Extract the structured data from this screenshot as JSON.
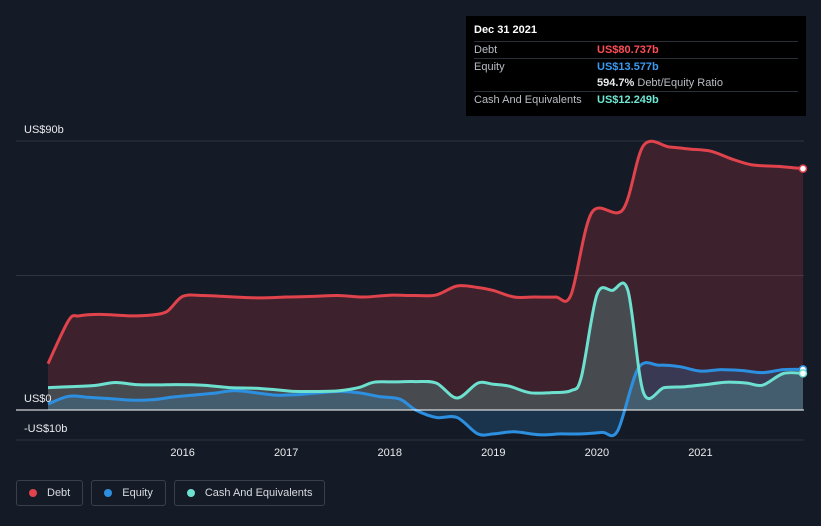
{
  "tooltip": {
    "date": "Dec 31 2021",
    "debt_label": "Debt",
    "debt_value": "US$80.737b",
    "equity_label": "Equity",
    "equity_value": "US$13.577b",
    "ratio_value": "594.7%",
    "ratio_label": "Debt/Equity Ratio",
    "cash_label": "Cash And Equivalents",
    "cash_value": "US$12.249b"
  },
  "legend": [
    {
      "label": "Debt",
      "color": "#e0434b"
    },
    {
      "label": "Equity",
      "color": "#2d8fe0"
    },
    {
      "label": "Cash And Equivalents",
      "color": "#6ee0cf"
    }
  ],
  "chart_data": {
    "type": "area",
    "y_tick_labels": [
      "US$90b",
      "US$0",
      "-US$10b"
    ],
    "ylim": [
      -10,
      90
    ],
    "x_ticks": [
      {
        "label": "2016",
        "x": 2016.0
      },
      {
        "label": "2017",
        "x": 2017.0
      },
      {
        "label": "2018",
        "x": 2018.0
      },
      {
        "label": "2019",
        "x": 2019.0
      },
      {
        "label": "2020",
        "x": 2020.0
      },
      {
        "label": "2021",
        "x": 2021.0
      }
    ],
    "xlim": [
      2014.7,
      2022.0
    ],
    "colors": {
      "debt": "#e0434b",
      "equity": "#2d8fe0",
      "cash": "#6ee0cf"
    },
    "series": [
      {
        "name": "Debt",
        "key": "debt",
        "points": [
          [
            2014.7,
            15.5
          ],
          [
            2014.9,
            30
          ],
          [
            2015.0,
            31.5
          ],
          [
            2015.2,
            32
          ],
          [
            2015.5,
            31.5
          ],
          [
            2015.7,
            31.8
          ],
          [
            2015.85,
            33
          ],
          [
            2016.0,
            38
          ],
          [
            2016.2,
            38.3
          ],
          [
            2016.5,
            37.8
          ],
          [
            2016.75,
            37.5
          ],
          [
            2017.0,
            37.8
          ],
          [
            2017.25,
            38
          ],
          [
            2017.5,
            38.3
          ],
          [
            2017.75,
            37.8
          ],
          [
            2018.0,
            38.4
          ],
          [
            2018.25,
            38.3
          ],
          [
            2018.45,
            38.5
          ],
          [
            2018.65,
            41.5
          ],
          [
            2018.85,
            41
          ],
          [
            2019.0,
            40
          ],
          [
            2019.2,
            37.8
          ],
          [
            2019.4,
            37.8
          ],
          [
            2019.6,
            37.8
          ],
          [
            2019.75,
            38.5
          ],
          [
            2019.95,
            66
          ],
          [
            2020.25,
            67
          ],
          [
            2020.45,
            88.5
          ],
          [
            2020.7,
            88
          ],
          [
            2020.9,
            87.3
          ],
          [
            2021.1,
            86.6
          ],
          [
            2021.3,
            84
          ],
          [
            2021.5,
            82
          ],
          [
            2021.75,
            81.5
          ],
          [
            2021.99,
            80.737
          ]
        ]
      },
      {
        "name": "Equity",
        "key": "equity",
        "points": [
          [
            2014.7,
            2
          ],
          [
            2014.9,
            4.6
          ],
          [
            2015.1,
            4.2
          ],
          [
            2015.3,
            3.8
          ],
          [
            2015.5,
            3.3
          ],
          [
            2015.7,
            3.4
          ],
          [
            2015.9,
            4.3
          ],
          [
            2016.1,
            5
          ],
          [
            2016.3,
            5.6
          ],
          [
            2016.5,
            6.5
          ],
          [
            2016.7,
            5.8
          ],
          [
            2016.9,
            5
          ],
          [
            2017.1,
            5.1
          ],
          [
            2017.3,
            5.7
          ],
          [
            2017.5,
            6.2
          ],
          [
            2017.7,
            5.8
          ],
          [
            2017.9,
            4.5
          ],
          [
            2018.1,
            3.6
          ],
          [
            2018.25,
            0
          ],
          [
            2018.45,
            -2.5
          ],
          [
            2018.65,
            -2.5
          ],
          [
            2018.85,
            -8
          ],
          [
            2019.0,
            -8
          ],
          [
            2019.2,
            -7.3
          ],
          [
            2019.45,
            -8.3
          ],
          [
            2019.65,
            -8
          ],
          [
            2019.85,
            -8
          ],
          [
            2020.05,
            -7.5
          ],
          [
            2020.2,
            -7
          ],
          [
            2020.4,
            14
          ],
          [
            2020.6,
            15
          ],
          [
            2020.8,
            14.5
          ],
          [
            2021.0,
            13
          ],
          [
            2021.2,
            13.5
          ],
          [
            2021.4,
            13.2
          ],
          [
            2021.6,
            12.5
          ],
          [
            2021.8,
            13.5
          ],
          [
            2021.99,
            13.577
          ]
        ]
      },
      {
        "name": "Cash And Equivalents",
        "key": "cash",
        "points": [
          [
            2014.7,
            7.5
          ],
          [
            2014.9,
            7.8
          ],
          [
            2015.15,
            8.2
          ],
          [
            2015.35,
            9.2
          ],
          [
            2015.55,
            8.5
          ],
          [
            2015.75,
            8.4
          ],
          [
            2015.95,
            8.5
          ],
          [
            2016.2,
            8.3
          ],
          [
            2016.45,
            7.5
          ],
          [
            2016.7,
            7.3
          ],
          [
            2016.9,
            6.8
          ],
          [
            2017.05,
            6.3
          ],
          [
            2017.25,
            6.2
          ],
          [
            2017.5,
            6.4
          ],
          [
            2017.7,
            7.5
          ],
          [
            2017.85,
            9.3
          ],
          [
            2018.05,
            9.4
          ],
          [
            2018.25,
            9.5
          ],
          [
            2018.45,
            9
          ],
          [
            2018.65,
            4
          ],
          [
            2018.85,
            9
          ],
          [
            2019.0,
            8.6
          ],
          [
            2019.15,
            8
          ],
          [
            2019.35,
            5.8
          ],
          [
            2019.55,
            5.8
          ],
          [
            2019.75,
            6.5
          ],
          [
            2019.85,
            11
          ],
          [
            2020.0,
            38.5
          ],
          [
            2020.15,
            40
          ],
          [
            2020.3,
            40
          ],
          [
            2020.45,
            5.8
          ],
          [
            2020.65,
            7.5
          ],
          [
            2020.85,
            7.8
          ],
          [
            2021.05,
            8.5
          ],
          [
            2021.25,
            9.3
          ],
          [
            2021.45,
            9
          ],
          [
            2021.6,
            8.3
          ],
          [
            2021.8,
            12.2
          ],
          [
            2021.99,
            12.249
          ]
        ]
      }
    ]
  }
}
